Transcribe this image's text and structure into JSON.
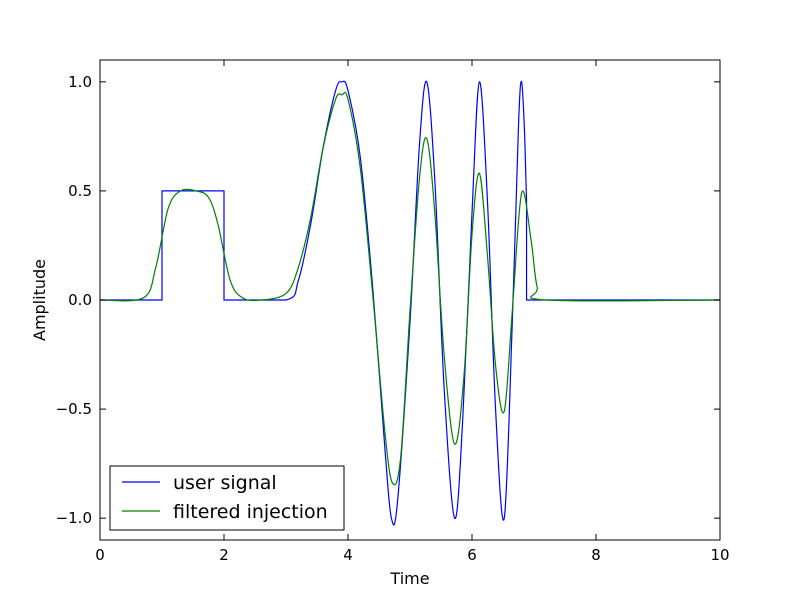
{
  "chart_data": {
    "type": "line",
    "title": "",
    "xlabel": "Time",
    "ylabel": "Amplitude",
    "xlim": [
      0,
      10
    ],
    "ylim": [
      -1.1,
      1.1
    ],
    "x_ticks": [
      0,
      2,
      4,
      6,
      8,
      10
    ],
    "x_tick_labels": [
      "0",
      "2",
      "4",
      "6",
      "8",
      "10"
    ],
    "y_ticks": [
      -1.0,
      -0.5,
      0.0,
      0.5,
      1.0
    ],
    "y_tick_labels": [
      "−1.0",
      "−0.5",
      "0.0",
      "0.5",
      "1.0"
    ],
    "grid": false,
    "legend_position": "lower-left",
    "series": [
      {
        "name": "user signal",
        "color": "#0000ff",
        "x": [
          0,
          1.0,
          1.0,
          2.0,
          2.0,
          3.0,
          3.2,
          3.4,
          3.6,
          3.8,
          3.9,
          4.0,
          4.2,
          4.4,
          4.6,
          4.7,
          4.8,
          5.0,
          5.15,
          5.27,
          5.4,
          5.55,
          5.72,
          5.85,
          6.0,
          6.12,
          6.25,
          6.38,
          6.52,
          6.65,
          6.75,
          6.8,
          6.85,
          6.88,
          6.88,
          10
        ],
        "y": [
          0,
          0,
          0.5,
          0.5,
          0,
          0,
          0.09,
          0.35,
          0.7,
          0.96,
          1.0,
          0.96,
          0.65,
          0.05,
          -0.7,
          -1.0,
          -0.92,
          -0.1,
          0.7,
          1.0,
          0.55,
          -0.4,
          -1.0,
          -0.55,
          0.4,
          1.0,
          0.45,
          -0.5,
          -1.0,
          -0.1,
          0.8,
          1.0,
          0.75,
          0.45,
          0,
          0
        ]
      },
      {
        "name": "filtered injection",
        "color": "#008000",
        "x": [
          0,
          0.7,
          0.9,
          1.1,
          1.3,
          1.55,
          1.75,
          1.9,
          2.1,
          2.3,
          2.6,
          3.0,
          3.2,
          3.4,
          3.6,
          3.8,
          3.9,
          4.0,
          4.2,
          4.4,
          4.6,
          4.72,
          4.85,
          5.0,
          5.15,
          5.27,
          5.4,
          5.55,
          5.72,
          5.87,
          6.0,
          6.12,
          6.25,
          6.38,
          6.52,
          6.65,
          6.8,
          6.95,
          7.05,
          7.2,
          10
        ],
        "y": [
          0,
          0.01,
          0.15,
          0.42,
          0.5,
          0.5,
          0.47,
          0.35,
          0.09,
          0.01,
          0,
          0.03,
          0.15,
          0.38,
          0.7,
          0.92,
          0.94,
          0.92,
          0.6,
          0.02,
          -0.62,
          -0.84,
          -0.72,
          -0.05,
          0.55,
          0.74,
          0.4,
          -0.25,
          -0.66,
          -0.35,
          0.3,
          0.58,
          0.2,
          -0.3,
          -0.51,
          -0.05,
          0.49,
          0.28,
          0.06,
          0.0,
          0
        ]
      }
    ]
  }
}
